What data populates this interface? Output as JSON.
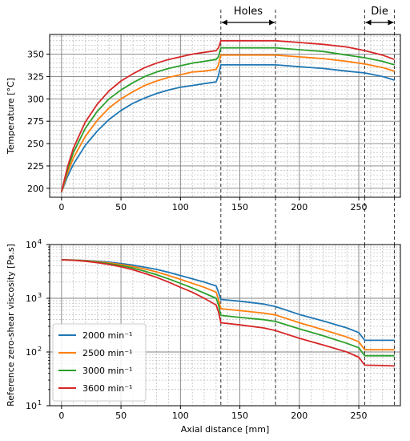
{
  "chart_data": [
    {
      "type": "line",
      "xlabel": "",
      "ylabel": "Temperature [°C]",
      "xlim": [
        -10,
        285
      ],
      "ylim": [
        190,
        372
      ],
      "xticks": [
        0,
        50,
        100,
        150,
        200,
        250
      ],
      "yticks": [
        200,
        225,
        250,
        275,
        300,
        325,
        350
      ],
      "grid": true,
      "series": [
        {
          "name": "2000 min⁻¹",
          "color": "#1f77b4",
          "x": [
            0,
            5,
            10,
            20,
            30,
            40,
            50,
            60,
            70,
            80,
            90,
            100,
            110,
            120,
            130,
            132,
            134,
            150,
            160,
            170,
            180,
            200,
            220,
            240,
            255,
            270,
            280
          ],
          "y": [
            196,
            213,
            227,
            248,
            264,
            277,
            287,
            295,
            301,
            306,
            310,
            313,
            315,
            317,
            319,
            326,
            338,
            338,
            338,
            338,
            338,
            336,
            334,
            331,
            329,
            325,
            321
          ]
        },
        {
          "name": "2500 min⁻¹",
          "color": "#ff7f0e",
          "x": [
            0,
            5,
            10,
            20,
            30,
            40,
            50,
            60,
            70,
            80,
            90,
            100,
            110,
            120,
            130,
            132,
            134,
            150,
            160,
            170,
            180,
            200,
            220,
            240,
            255,
            270,
            280
          ],
          "y": [
            196,
            217,
            234,
            258,
            276,
            290,
            300,
            308,
            315,
            320,
            324,
            327,
            330,
            331,
            333,
            338,
            349,
            349,
            349,
            349,
            349,
            347,
            345,
            342,
            339,
            335,
            331
          ]
        },
        {
          "name": "3000 min⁻¹",
          "color": "#2ca02c",
          "x": [
            0,
            5,
            10,
            20,
            30,
            40,
            50,
            60,
            70,
            80,
            90,
            100,
            110,
            120,
            130,
            132,
            134,
            150,
            160,
            170,
            180,
            200,
            220,
            240,
            255,
            270,
            280
          ],
          "y": [
            196,
            221,
            240,
            267,
            286,
            300,
            310,
            318,
            325,
            330,
            334,
            337,
            340,
            342,
            344,
            347,
            357,
            357,
            357,
            357,
            357,
            355,
            353,
            349,
            346,
            342,
            338
          ]
        },
        {
          "name": "3600 min⁻¹",
          "color": "#d62728",
          "x": [
            0,
            5,
            10,
            20,
            30,
            40,
            50,
            60,
            70,
            80,
            90,
            100,
            110,
            120,
            130,
            132,
            134,
            150,
            160,
            170,
            180,
            200,
            220,
            240,
            255,
            270,
            280
          ],
          "y": [
            196,
            224,
            245,
            274,
            294,
            309,
            320,
            328,
            335,
            340,
            344,
            347,
            350,
            352,
            354,
            357,
            365,
            365,
            365,
            365,
            365,
            363,
            361,
            358,
            354,
            349,
            344
          ]
        }
      ],
      "vlines": [
        134,
        180,
        255,
        280
      ],
      "annotations": [
        {
          "text": "Holes",
          "x1": 134,
          "x2": 180
        },
        {
          "text": "Die",
          "x1": 255,
          "x2": 280
        }
      ]
    },
    {
      "type": "line",
      "yscale": "log",
      "xlabel": "Axial distance [mm]",
      "ylabel": "Reference zero-shear viscosity [Pa.s]",
      "xlim": [
        -10,
        285
      ],
      "ylim": [
        10,
        10000
      ],
      "xticks": [
        0,
        50,
        100,
        150,
        200,
        250
      ],
      "yticks": [
        10,
        100,
        1000,
        10000
      ],
      "ytick_labels": [
        {
          "base": "10",
          "exp": "1"
        },
        {
          "base": "10",
          "exp": "2"
        },
        {
          "base": "10",
          "exp": "3"
        },
        {
          "base": "10",
          "exp": "4"
        }
      ],
      "grid": true,
      "legend_position": "lower-left",
      "series": [
        {
          "name": "2000 min⁻¹",
          "color": "#1f77b4",
          "x": [
            0,
            10,
            20,
            30,
            40,
            50,
            60,
            70,
            80,
            90,
            100,
            110,
            120,
            130,
            132,
            134,
            150,
            170,
            180,
            200,
            220,
            240,
            250,
            255,
            270,
            280
          ],
          "y": [
            5200,
            5150,
            5050,
            4900,
            4700,
            4450,
            4150,
            3800,
            3450,
            3050,
            2650,
            2300,
            2000,
            1700,
            1300,
            950,
            880,
            780,
            700,
            500,
            380,
            280,
            230,
            165,
            165,
            165
          ]
        },
        {
          "name": "2500 min⁻¹",
          "color": "#ff7f0e",
          "x": [
            0,
            10,
            20,
            30,
            40,
            50,
            60,
            70,
            80,
            90,
            100,
            110,
            120,
            130,
            132,
            134,
            150,
            170,
            180,
            200,
            220,
            240,
            250,
            255,
            270,
            280
          ],
          "y": [
            5200,
            5130,
            5000,
            4800,
            4550,
            4250,
            3900,
            3500,
            3100,
            2650,
            2250,
            1900,
            1600,
            1300,
            950,
            640,
            590,
            530,
            490,
            350,
            260,
            190,
            155,
            110,
            110,
            110
          ]
        },
        {
          "name": "3000 min⁻¹",
          "color": "#2ca02c",
          "x": [
            0,
            10,
            20,
            30,
            40,
            50,
            60,
            70,
            80,
            90,
            100,
            110,
            120,
            130,
            132,
            134,
            150,
            170,
            180,
            200,
            220,
            240,
            250,
            255,
            270,
            280
          ],
          "y": [
            5200,
            5120,
            4950,
            4700,
            4400,
            4050,
            3650,
            3200,
            2750,
            2300,
            1900,
            1550,
            1250,
            1000,
            760,
            480,
            440,
            400,
            370,
            270,
            200,
            145,
            120,
            85,
            85,
            85
          ]
        },
        {
          "name": "3600 min⁻¹",
          "color": "#d62728",
          "x": [
            0,
            10,
            20,
            30,
            40,
            50,
            60,
            70,
            80,
            90,
            100,
            110,
            120,
            130,
            132,
            134,
            150,
            170,
            180,
            200,
            220,
            240,
            250,
            255,
            270,
            280
          ],
          "y": [
            5200,
            5100,
            4900,
            4600,
            4250,
            3850,
            3400,
            2900,
            2450,
            2000,
            1600,
            1300,
            1000,
            750,
            560,
            350,
            320,
            280,
            250,
            180,
            135,
            100,
            80,
            57,
            56,
            55
          ]
        }
      ],
      "vlines": [
        134,
        180,
        255,
        280
      ]
    }
  ]
}
